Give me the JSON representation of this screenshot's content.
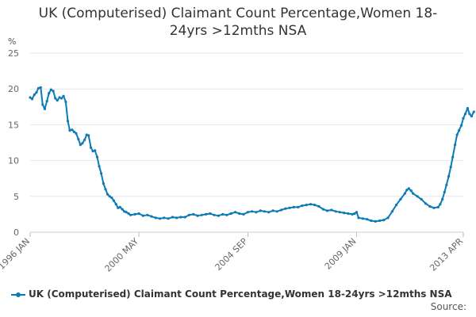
{
  "chart_data": {
    "type": "line",
    "title_line1": "UK (Computerised) Claimant Count Percentage,Women 18-",
    "title_line2": "24yrs >12mths NSA",
    "ylabel": "%",
    "ylim": [
      0,
      25
    ],
    "yticks": [
      0,
      5,
      10,
      15,
      20,
      25
    ],
    "xlim": [
      1996.0,
      2013.25
    ],
    "xticks": [
      {
        "label": "1996 JAN",
        "x": 1996.0
      },
      {
        "label": "2000 MAY",
        "x": 2000.33
      },
      {
        "label": "2004 SEP",
        "x": 2004.67
      },
      {
        "label": "2009 JAN",
        "x": 2009.0
      },
      {
        "label": "2013 APR",
        "x": 2013.25
      }
    ],
    "grid": true,
    "legend_position": "bottom",
    "series": [
      {
        "name": "UK (Computerised) Claimant Count Percentage,Women 18-24yrs >12mths NSA",
        "color": "#0b7bb7",
        "points": [
          [
            1996.0,
            18.8
          ],
          [
            1996.08,
            18.6
          ],
          [
            1996.17,
            19.2
          ],
          [
            1996.25,
            19.5
          ],
          [
            1996.33,
            20.1
          ],
          [
            1996.42,
            20.2
          ],
          [
            1996.5,
            17.8
          ],
          [
            1996.58,
            17.2
          ],
          [
            1996.67,
            18.3
          ],
          [
            1996.75,
            19.4
          ],
          [
            1996.83,
            19.9
          ],
          [
            1996.92,
            19.7
          ],
          [
            1997.0,
            18.7
          ],
          [
            1997.08,
            18.4
          ],
          [
            1997.17,
            18.8
          ],
          [
            1997.25,
            18.7
          ],
          [
            1997.33,
            19.0
          ],
          [
            1997.42,
            18.2
          ],
          [
            1997.5,
            15.5
          ],
          [
            1997.58,
            14.2
          ],
          [
            1997.67,
            14.3
          ],
          [
            1997.75,
            14.0
          ],
          [
            1997.83,
            13.8
          ],
          [
            1997.92,
            13.0
          ],
          [
            1998.0,
            12.2
          ],
          [
            1998.08,
            12.4
          ],
          [
            1998.17,
            12.9
          ],
          [
            1998.25,
            13.6
          ],
          [
            1998.33,
            13.5
          ],
          [
            1998.42,
            11.8
          ],
          [
            1998.5,
            11.3
          ],
          [
            1998.58,
            11.4
          ],
          [
            1998.67,
            10.5
          ],
          [
            1998.75,
            9.2
          ],
          [
            1998.83,
            8.2
          ],
          [
            1998.92,
            6.8
          ],
          [
            1999.0,
            6.0
          ],
          [
            1999.08,
            5.3
          ],
          [
            1999.17,
            5.0
          ],
          [
            1999.25,
            4.8
          ],
          [
            1999.33,
            4.4
          ],
          [
            1999.42,
            3.9
          ],
          [
            1999.5,
            3.4
          ],
          [
            1999.58,
            3.5
          ],
          [
            1999.67,
            3.2
          ],
          [
            1999.75,
            2.9
          ],
          [
            1999.83,
            2.8
          ],
          [
            1999.92,
            2.6
          ],
          [
            2000.0,
            2.4
          ],
          [
            2000.17,
            2.5
          ],
          [
            2000.33,
            2.6
          ],
          [
            2000.5,
            2.3
          ],
          [
            2000.67,
            2.4
          ],
          [
            2000.83,
            2.2
          ],
          [
            2001.0,
            2.0
          ],
          [
            2001.17,
            1.9
          ],
          [
            2001.33,
            2.0
          ],
          [
            2001.5,
            1.9
          ],
          [
            2001.67,
            2.1
          ],
          [
            2001.83,
            2.0
          ],
          [
            2002.0,
            2.1
          ],
          [
            2002.17,
            2.1
          ],
          [
            2002.33,
            2.4
          ],
          [
            2002.5,
            2.5
          ],
          [
            2002.67,
            2.3
          ],
          [
            2002.83,
            2.4
          ],
          [
            2003.0,
            2.5
          ],
          [
            2003.17,
            2.6
          ],
          [
            2003.33,
            2.4
          ],
          [
            2003.5,
            2.3
          ],
          [
            2003.67,
            2.5
          ],
          [
            2003.83,
            2.4
          ],
          [
            2004.0,
            2.6
          ],
          [
            2004.17,
            2.8
          ],
          [
            2004.33,
            2.6
          ],
          [
            2004.5,
            2.5
          ],
          [
            2004.67,
            2.8
          ],
          [
            2004.83,
            2.9
          ],
          [
            2005.0,
            2.8
          ],
          [
            2005.17,
            3.0
          ],
          [
            2005.33,
            2.9
          ],
          [
            2005.5,
            2.8
          ],
          [
            2005.67,
            3.0
          ],
          [
            2005.83,
            2.9
          ],
          [
            2006.0,
            3.1
          ],
          [
            2006.17,
            3.3
          ],
          [
            2006.33,
            3.4
          ],
          [
            2006.5,
            3.5
          ],
          [
            2006.67,
            3.5
          ],
          [
            2006.83,
            3.7
          ],
          [
            2007.0,
            3.8
          ],
          [
            2007.17,
            3.9
          ],
          [
            2007.33,
            3.8
          ],
          [
            2007.5,
            3.6
          ],
          [
            2007.67,
            3.2
          ],
          [
            2007.83,
            3.0
          ],
          [
            2008.0,
            3.1
          ],
          [
            2008.17,
            2.9
          ],
          [
            2008.33,
            2.8
          ],
          [
            2008.5,
            2.7
          ],
          [
            2008.67,
            2.6
          ],
          [
            2008.83,
            2.5
          ],
          [
            2008.92,
            2.6
          ],
          [
            2009.0,
            2.8
          ],
          [
            2009.08,
            2.0
          ],
          [
            2009.25,
            1.9
          ],
          [
            2009.42,
            1.8
          ],
          [
            2009.58,
            1.6
          ],
          [
            2009.75,
            1.5
          ],
          [
            2009.92,
            1.6
          ],
          [
            2010.08,
            1.7
          ],
          [
            2010.25,
            2.0
          ],
          [
            2010.42,
            2.9
          ],
          [
            2010.58,
            3.8
          ],
          [
            2010.75,
            4.6
          ],
          [
            2010.92,
            5.4
          ],
          [
            2011.0,
            5.9
          ],
          [
            2011.08,
            6.1
          ],
          [
            2011.17,
            5.8
          ],
          [
            2011.25,
            5.4
          ],
          [
            2011.42,
            5.0
          ],
          [
            2011.58,
            4.6
          ],
          [
            2011.75,
            4.0
          ],
          [
            2011.92,
            3.6
          ],
          [
            2012.08,
            3.4
          ],
          [
            2012.25,
            3.5
          ],
          [
            2012.33,
            3.9
          ],
          [
            2012.42,
            4.6
          ],
          [
            2012.5,
            5.6
          ],
          [
            2012.58,
            6.6
          ],
          [
            2012.67,
            7.8
          ],
          [
            2012.75,
            9.1
          ],
          [
            2012.83,
            10.5
          ],
          [
            2012.92,
            12.2
          ],
          [
            2013.0,
            13.6
          ],
          [
            2013.08,
            14.2
          ],
          [
            2013.17,
            14.9
          ],
          [
            2013.25,
            15.9
          ],
          [
            2013.33,
            16.5
          ],
          [
            2013.42,
            17.3
          ],
          [
            2013.5,
            16.5
          ],
          [
            2013.58,
            16.2
          ],
          [
            2013.67,
            16.8
          ]
        ]
      }
    ],
    "source_label": "Source:"
  }
}
